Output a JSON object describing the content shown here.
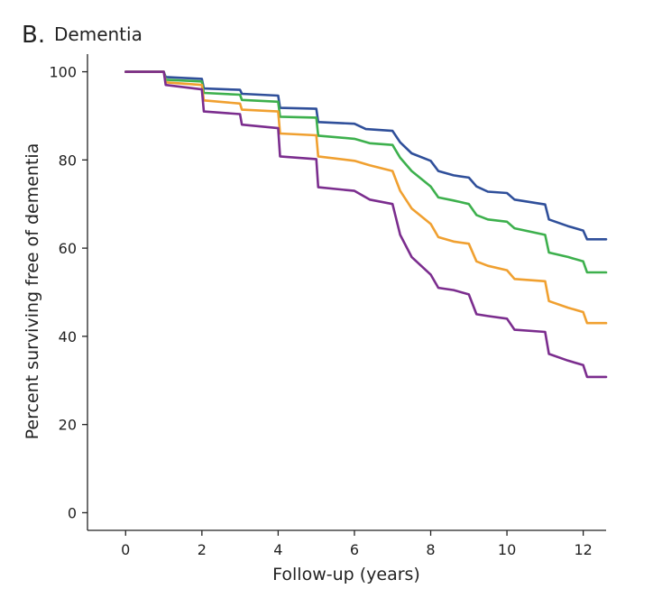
{
  "chart_data": {
    "type": "line",
    "panel_letter": "B.",
    "title": "Dementia",
    "xlabel": "Follow-up (years)",
    "ylabel": "Percent surviving free of dementia",
    "xlim": [
      -1.0,
      12.6
    ],
    "ylim": [
      -4,
      104
    ],
    "xticks": [
      0,
      2,
      4,
      6,
      8,
      10,
      12
    ],
    "yticks": [
      0,
      20,
      40,
      60,
      80,
      100
    ],
    "grid": false,
    "series": [
      {
        "name": "blue",
        "color": "#2f4f9a",
        "points": [
          [
            0,
            100
          ],
          [
            1,
            100
          ],
          [
            1.05,
            98.8
          ],
          [
            2,
            98.4
          ],
          [
            2.05,
            96.2
          ],
          [
            3,
            95.9
          ],
          [
            3.05,
            95.0
          ],
          [
            4,
            94.6
          ],
          [
            4.05,
            91.8
          ],
          [
            5,
            91.6
          ],
          [
            5.05,
            88.6
          ],
          [
            6,
            88.2
          ],
          [
            6.3,
            87.0
          ],
          [
            7,
            86.6
          ],
          [
            7.2,
            84.0
          ],
          [
            7.5,
            81.5
          ],
          [
            8,
            79.8
          ],
          [
            8.2,
            77.5
          ],
          [
            8.6,
            76.5
          ],
          [
            9,
            76.0
          ],
          [
            9.2,
            74.0
          ],
          [
            9.5,
            72.8
          ],
          [
            10,
            72.5
          ],
          [
            10.2,
            71.0
          ],
          [
            11,
            69.9
          ],
          [
            11.1,
            66.5
          ],
          [
            11.6,
            65.0
          ],
          [
            12,
            64.0
          ],
          [
            12.1,
            62.0
          ],
          [
            12.6,
            62.0
          ]
        ]
      },
      {
        "name": "green",
        "color": "#3db04d",
        "points": [
          [
            0,
            100
          ],
          [
            1,
            100
          ],
          [
            1.05,
            98.2
          ],
          [
            2,
            97.8
          ],
          [
            2.05,
            95.2
          ],
          [
            3,
            94.8
          ],
          [
            3.05,
            93.6
          ],
          [
            4,
            93.2
          ],
          [
            4.05,
            89.8
          ],
          [
            5,
            89.6
          ],
          [
            5.05,
            85.5
          ],
          [
            6,
            84.8
          ],
          [
            6.4,
            83.8
          ],
          [
            7,
            83.4
          ],
          [
            7.2,
            80.5
          ],
          [
            7.5,
            77.5
          ],
          [
            8,
            74.0
          ],
          [
            8.2,
            71.5
          ],
          [
            8.6,
            70.8
          ],
          [
            9,
            70.0
          ],
          [
            9.2,
            67.5
          ],
          [
            9.5,
            66.5
          ],
          [
            10,
            66.0
          ],
          [
            10.2,
            64.5
          ],
          [
            11,
            63.0
          ],
          [
            11.1,
            59.0
          ],
          [
            11.6,
            58.0
          ],
          [
            12,
            57.0
          ],
          [
            12.1,
            54.5
          ],
          [
            12.6,
            54.5
          ]
        ]
      },
      {
        "name": "orange",
        "color": "#f0a030",
        "points": [
          [
            0,
            100
          ],
          [
            1,
            100
          ],
          [
            1.05,
            97.6
          ],
          [
            2,
            97.0
          ],
          [
            2.05,
            93.5
          ],
          [
            3,
            92.8
          ],
          [
            3.05,
            91.4
          ],
          [
            4,
            91.0
          ],
          [
            4.05,
            86.0
          ],
          [
            5,
            85.6
          ],
          [
            5.05,
            80.8
          ],
          [
            6,
            79.8
          ],
          [
            6.4,
            78.8
          ],
          [
            7,
            77.5
          ],
          [
            7.2,
            73.0
          ],
          [
            7.5,
            69.0
          ],
          [
            8,
            65.5
          ],
          [
            8.2,
            62.5
          ],
          [
            8.6,
            61.5
          ],
          [
            9,
            61.0
          ],
          [
            9.2,
            57.0
          ],
          [
            9.5,
            56.0
          ],
          [
            10,
            55.0
          ],
          [
            10.2,
            53.0
          ],
          [
            11,
            52.5
          ],
          [
            11.1,
            48.0
          ],
          [
            11.6,
            46.5
          ],
          [
            12,
            45.5
          ],
          [
            12.1,
            43.0
          ],
          [
            12.6,
            43.0
          ]
        ]
      },
      {
        "name": "purple",
        "color": "#7b2d8e",
        "points": [
          [
            0,
            100
          ],
          [
            1,
            100
          ],
          [
            1.05,
            97.0
          ],
          [
            2,
            96.0
          ],
          [
            2.05,
            91.0
          ],
          [
            3,
            90.4
          ],
          [
            3.05,
            88.0
          ],
          [
            4,
            87.2
          ],
          [
            4.05,
            80.8
          ],
          [
            5,
            80.2
          ],
          [
            5.05,
            73.8
          ],
          [
            6,
            73.0
          ],
          [
            6.4,
            71.0
          ],
          [
            7,
            70.0
          ],
          [
            7.2,
            63.0
          ],
          [
            7.5,
            58.0
          ],
          [
            8,
            54.0
          ],
          [
            8.2,
            51.0
          ],
          [
            8.6,
            50.5
          ],
          [
            9,
            49.5
          ],
          [
            9.2,
            45.0
          ],
          [
            9.5,
            44.6
          ],
          [
            10,
            44.0
          ],
          [
            10.2,
            41.5
          ],
          [
            11,
            41.0
          ],
          [
            11.1,
            36.0
          ],
          [
            11.6,
            34.5
          ],
          [
            12,
            33.5
          ],
          [
            12.1,
            30.8
          ],
          [
            12.6,
            30.8
          ]
        ]
      }
    ]
  }
}
